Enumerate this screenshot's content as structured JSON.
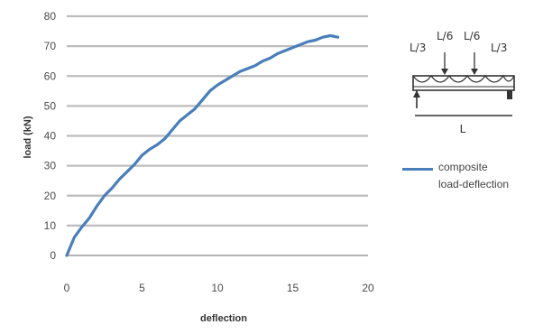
{
  "chart_data": {
    "type": "line",
    "title": "",
    "xlabel": "deflection",
    "ylabel": "load (kN)",
    "xlim": [
      0,
      20
    ],
    "ylim": [
      0,
      80
    ],
    "x_ticks": [
      0,
      5,
      10,
      15,
      20
    ],
    "x_tick_labels": [
      "0",
      "5",
      "10",
      "15",
      "20"
    ],
    "y_ticks": [
      0,
      10,
      20,
      30,
      40,
      50,
      60,
      70,
      80
    ],
    "y_tick_labels": [
      "0",
      "10",
      "20",
      "30",
      "40",
      "50",
      "60",
      "70",
      "80"
    ],
    "grid": "horizontal",
    "legend_position": "right",
    "series": [
      {
        "name": "composite load-deflection",
        "color": "#4a7ebb",
        "x": [
          0,
          0.5,
          1.0,
          1.5,
          2.0,
          2.5,
          3.0,
          3.5,
          4.0,
          4.5,
          5.0,
          5.5,
          6.0,
          6.5,
          7.0,
          7.5,
          8.0,
          8.5,
          9.0,
          9.5,
          10.0,
          10.5,
          11.0,
          11.5,
          12.0,
          12.5,
          13.0,
          13.5,
          14.0,
          14.5,
          15.0,
          15.5,
          16.0,
          16.5,
          17.0,
          17.5,
          18.0
        ],
        "y": [
          0,
          6,
          9.5,
          12.5,
          16.5,
          20,
          22.5,
          25.5,
          28,
          30.5,
          33.5,
          35.5,
          37,
          39,
          42,
          45,
          47,
          49,
          52,
          55,
          57,
          58.5,
          60,
          61.5,
          62.5,
          63.5,
          65,
          66,
          67.5,
          68.5,
          69.5,
          70.5,
          71.5,
          72,
          73,
          73.5,
          73
        ]
      }
    ]
  },
  "sketch": {
    "load_labels": [
      "L/3",
      "L/6",
      "L/6",
      "L/3"
    ],
    "span_label": "L"
  }
}
